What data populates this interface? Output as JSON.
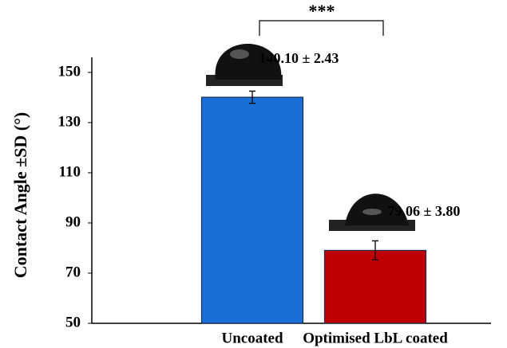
{
  "chart_data": {
    "type": "bar",
    "y_label": "Contact Angle ±SD (°)",
    "categories": [
      null,
      "Uncoated",
      "Optimised LbL coated"
    ],
    "values": [
      null,
      140.1,
      79.06
    ],
    "errors": [
      null,
      2.43,
      3.8
    ],
    "value_labels": [
      null,
      "140.10 ± 2.43",
      "79.06 ± 3.80"
    ],
    "colors": [
      null,
      "#1a6fd6",
      "#c00000"
    ],
    "ylim": [
      50,
      156
    ],
    "yticks": [
      50,
      70,
      90,
      110,
      130,
      150
    ],
    "annotation": "***"
  }
}
